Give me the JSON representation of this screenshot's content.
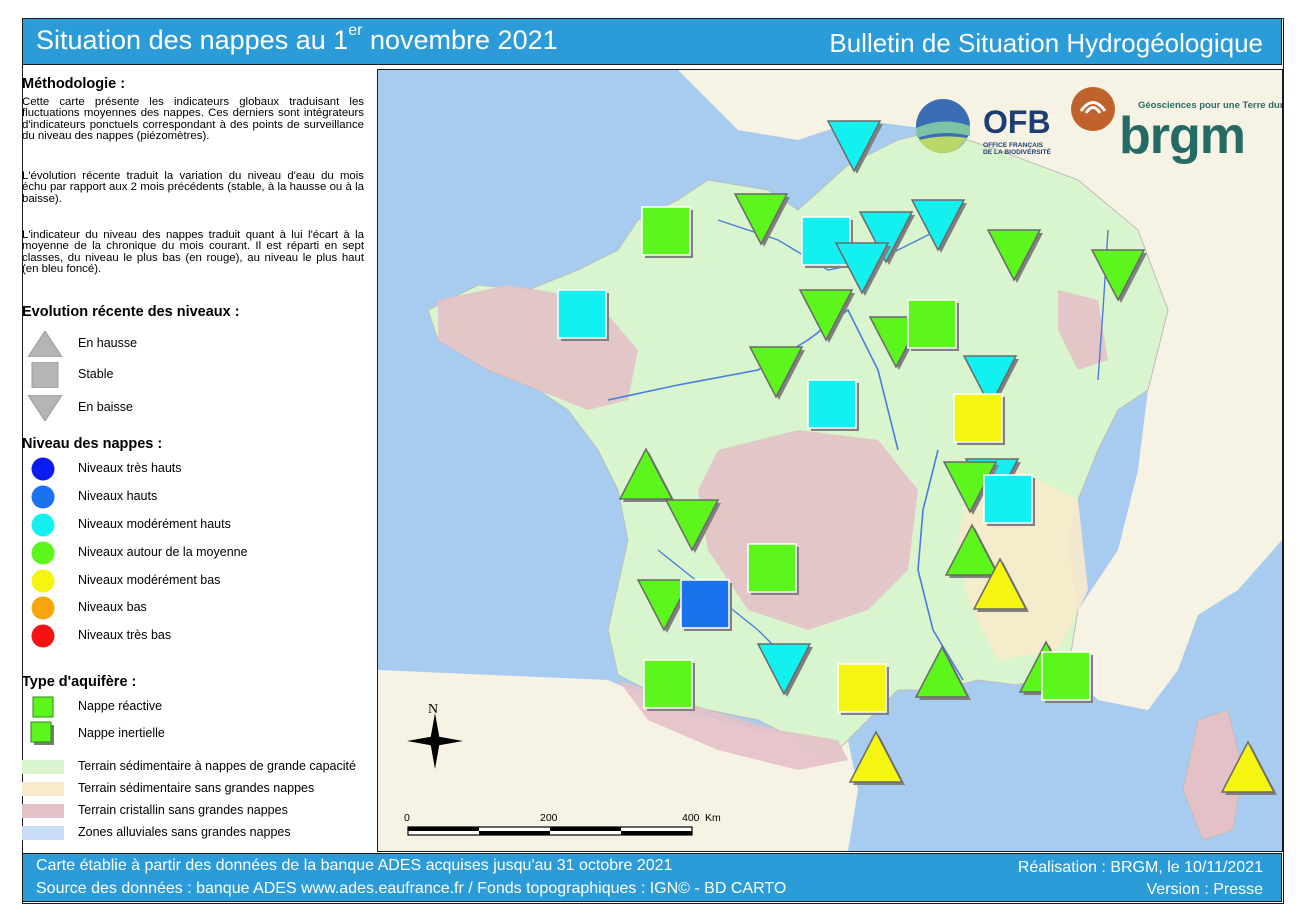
{
  "header": {
    "title_main": "Situation des nappes au 1",
    "title_sup": "er",
    "title_end": " novembre 2021",
    "right_title": "Bulletin de Situation Hydrogéologique",
    "bg_color": "#2b9cd8"
  },
  "legend": {
    "methodology_title": "Méthodologie :",
    "methodology_p1": "Cette carte présente les indicateurs globaux traduisant les fluctuations moyennes des nappes. Ces derniers sont intégrateurs d'indicateurs ponctuels correspondant à des points de surveillance du niveau des nappes (piézomètres).",
    "methodology_p2": "L'évolution récente traduit la variation du niveau d'eau du mois échu par rapport aux 2 mois précédents (stable, à la hausse ou à la baisse).",
    "methodology_p3": "L'indicateur du niveau des nappes traduit quant à lui l'écart à la moyenne de la chronique du mois courant. Il est réparti en sept classes, du niveau le plus bas (en rouge), au niveau le plus haut (en bleu foncé).",
    "evolution_title": "Evolution récente des niveaux :",
    "evolution_items": [
      {
        "shape": "up",
        "label": "En hausse"
      },
      {
        "shape": "square",
        "label": "Stable"
      },
      {
        "shape": "down",
        "label": "En baisse"
      }
    ],
    "level_title": "Niveau des nappes :",
    "level_items": [
      {
        "color": "#0a1cf0",
        "label": "Niveaux très hauts"
      },
      {
        "color": "#1a72ee",
        "label": "Niveaux hauts"
      },
      {
        "color": "#12f0f0",
        "label": "Niveaux modérément hauts"
      },
      {
        "color": "#5cf51c",
        "label": "Niveaux autour de la moyenne"
      },
      {
        "color": "#f5f512",
        "label": "Niveaux modérément bas"
      },
      {
        "color": "#f7a50b",
        "label": "Niveaux bas"
      },
      {
        "color": "#f51212",
        "label": "Niveaux très bas"
      }
    ],
    "aquifer_title": "Type d'aquifère :",
    "aquifer_items": [
      {
        "type": "reactive",
        "label": "Nappe réactive"
      },
      {
        "type": "inertial",
        "label": "Nappe inertielle"
      }
    ],
    "zone_items": [
      {
        "color": "#d8f5cd",
        "label": "Terrain sédimentaire à nappes de grande capacité"
      },
      {
        "color": "#f8ebcb",
        "label": "Terrain sédimentaire sans grandes nappes"
      },
      {
        "color": "#e4c1c6",
        "label": "Terrain cristallin sans grandes nappes"
      },
      {
        "color": "#c8dcf8",
        "label": "Zones alluviales sans grandes nappes"
      }
    ]
  },
  "map": {
    "sea_color": "#a8ccef",
    "north_label": "N",
    "scale_labels": [
      "0",
      "200",
      "400",
      "Km"
    ],
    "logos": {
      "ofb_text": "OFB",
      "ofb_subtext_1": "OFFICE FRANÇAIS",
      "ofb_subtext_2": "DE LA BIODIVERSITÉ",
      "brgm_tagline": "Géosciences pour une Terre durable",
      "brgm_text": "brgm"
    },
    "marker_legend_note": "shape = evolution (up/square/down); color = level class",
    "markers": [
      {
        "evolution": "down",
        "level": "Niveaux modérément hauts"
      },
      {
        "evolution": "square",
        "level": "Niveaux autour de la moyenne"
      },
      {
        "evolution": "down",
        "level": "Niveaux autour de la moyenne"
      },
      {
        "evolution": "square",
        "level": "Niveaux modérément hauts"
      },
      {
        "evolution": "down",
        "level": "Niveaux modérément hauts"
      },
      {
        "evolution": "down",
        "level": "Niveaux modérément hauts"
      },
      {
        "evolution": "down",
        "level": "Niveaux autour de la moyenne"
      },
      {
        "evolution": "down",
        "level": "Niveaux autour de la moyenne"
      },
      {
        "evolution": "down",
        "level": "Niveaux modérément hauts"
      },
      {
        "evolution": "square",
        "level": "Niveaux modérément hauts"
      },
      {
        "evolution": "down",
        "level": "Niveaux autour de la moyenne"
      },
      {
        "evolution": "down",
        "level": "Niveaux autour de la moyenne"
      },
      {
        "evolution": "square",
        "level": "Niveaux autour de la moyenne"
      },
      {
        "evolution": "down",
        "level": "Niveaux autour de la moyenne"
      },
      {
        "evolution": "down",
        "level": "Niveaux modérément hauts"
      },
      {
        "evolution": "square",
        "level": "Niveaux modérément hauts"
      },
      {
        "evolution": "square",
        "level": "Niveaux modérément bas"
      },
      {
        "evolution": "down",
        "level": "Niveaux modérément hauts"
      },
      {
        "evolution": "up",
        "level": "Niveaux autour de la moyenne"
      },
      {
        "evolution": "down",
        "level": "Niveaux autour de la moyenne"
      },
      {
        "evolution": "down",
        "level": "Niveaux autour de la moyenne"
      },
      {
        "evolution": "square",
        "level": "Niveaux modérément hauts"
      },
      {
        "evolution": "up",
        "level": "Niveaux autour de la moyenne"
      },
      {
        "evolution": "up",
        "level": "Niveaux modérément bas"
      },
      {
        "evolution": "square",
        "level": "Niveaux autour de la moyenne"
      },
      {
        "evolution": "down",
        "level": "Niveaux autour de la moyenne"
      },
      {
        "evolution": "square",
        "level": "Niveaux hauts"
      },
      {
        "evolution": "square",
        "level": "Niveaux autour de la moyenne"
      },
      {
        "evolution": "down",
        "level": "Niveaux modérément hauts"
      },
      {
        "evolution": "square",
        "level": "Niveaux modérément bas"
      },
      {
        "evolution": "up",
        "level": "Niveaux autour de la moyenne"
      },
      {
        "evolution": "up",
        "level": "Niveaux autour de la moyenne"
      },
      {
        "evolution": "square",
        "level": "Niveaux autour de la moyenne"
      },
      {
        "evolution": "up",
        "level": "Niveaux modérément bas"
      },
      {
        "evolution": "up",
        "level": "Niveaux modérément bas"
      }
    ]
  },
  "footer": {
    "left_line1": "Carte établie à partir des données de la banque ADES acquises jusqu'au 31 octobre 2021",
    "left_line2": "Source des données : banque ADES www.ades.eaufrance.fr / Fonds topographiques : IGN© - BD CARTO",
    "right_line1": "Réalisation : BRGM, le 10/11/2021",
    "right_line2": "Version : Presse"
  }
}
